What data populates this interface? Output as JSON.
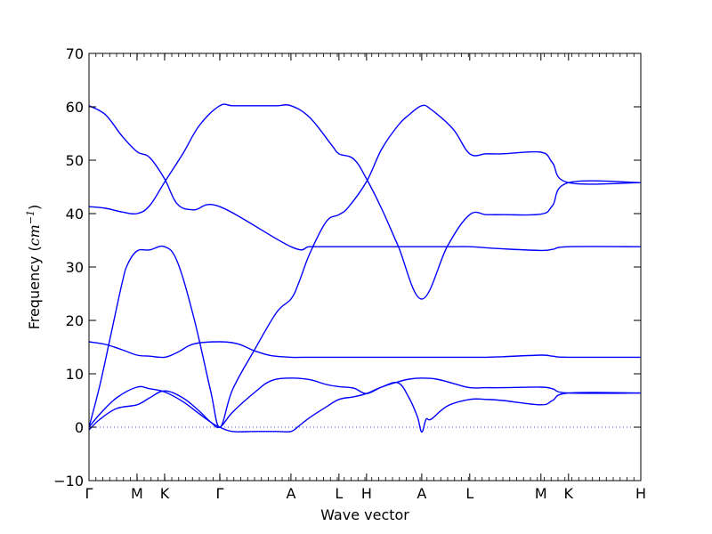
{
  "chart_data": {
    "type": "line",
    "xlabel": "Wave vector",
    "ylabel_prefix": "Frequency (",
    "ylabel_unit_main": "cm",
    "ylabel_unit_sup": "−1",
    "ylabel_suffix": ")",
    "ylim": [
      -10,
      70
    ],
    "xlim": [
      0,
      1
    ],
    "yticks": [
      -10,
      0,
      10,
      20,
      30,
      40,
      50,
      60,
      70
    ],
    "ytick_labels": [
      "−10",
      "0",
      "10",
      "20",
      "30",
      "40",
      "50",
      "60",
      "70"
    ],
    "xticks": [
      {
        "label": "Γ",
        "x": 0.0
      },
      {
        "label": "M",
        "x": 0.087
      },
      {
        "label": "K",
        "x": 0.137
      },
      {
        "label": "Γ",
        "x": 0.237
      },
      {
        "label": "A",
        "x": 0.366
      },
      {
        "label": "L",
        "x": 0.453
      },
      {
        "label": "H",
        "x": 0.503
      },
      {
        "label": "A",
        "x": 0.603
      },
      {
        "label": "L",
        "x": 0.69
      },
      {
        "label": "M",
        "x": 0.819
      },
      {
        "label": "K",
        "x": 0.869
      },
      {
        "label": "H",
        "x": 1.0
      }
    ],
    "zero_line": true,
    "line_color": "#0000ff",
    "series": [
      {
        "x": [
          0,
          0.03,
          0.06,
          0.087,
          0.11,
          0.137,
          0.16,
          0.19,
          0.237,
          0.366,
          0.4,
          0.44,
          0.453,
          0.48,
          0.503,
          0.53,
          0.56,
          0.603,
          0.65,
          0.69,
          0.72,
          0.75,
          0.819,
          0.84,
          0.869,
          1.0
        ],
        "y": [
          60.2,
          58.5,
          54.5,
          51.6,
          50.5,
          46.5,
          41.8,
          40.7,
          41.3,
          33.8,
          33.8,
          33.8,
          33.8,
          33.8,
          33.8,
          33.8,
          33.8,
          33.8,
          33.8,
          33.8,
          33.6,
          33.4,
          33.1,
          33.3,
          33.8,
          33.8
        ]
      },
      {
        "x": [
          0,
          0.03,
          0.06,
          0.087,
          0.11,
          0.137,
          0.17,
          0.2,
          0.237,
          0.26,
          0.3,
          0.34,
          0.366,
          0.4,
          0.44,
          0.453,
          0.48,
          0.503,
          0.53,
          0.56,
          0.603,
          0.65,
          0.69,
          0.72,
          0.75,
          0.819,
          0.84,
          0.869,
          1.0
        ],
        "y": [
          41.3,
          41.0,
          40.3,
          40.0,
          41.5,
          45.9,
          51.2,
          56.5,
          60.2,
          60.2,
          60.2,
          60.2,
          60.2,
          58.0,
          52.8,
          51.2,
          50.2,
          46.5,
          41.0,
          34.0,
          24.0,
          34.0,
          39.8,
          39.8,
          39.8,
          39.9,
          41.5,
          45.8,
          45.8
        ]
      },
      {
        "x": [
          0,
          0.02,
          0.04,
          0.06,
          0.07,
          0.087,
          0.11,
          0.137,
          0.16,
          0.19,
          0.22,
          0.237,
          0.26,
          0.3,
          0.34,
          0.366,
          0.38,
          0.4,
          0.43,
          0.453,
          0.47,
          0.503,
          0.53,
          0.56,
          0.58,
          0.603,
          0.62,
          0.66,
          0.69,
          0.72,
          0.75,
          0.819,
          0.84,
          0.869,
          1.0
        ],
        "y": [
          0,
          8.0,
          17.5,
          27.0,
          30.5,
          33.0,
          33.2,
          33.8,
          31.0,
          20.5,
          7.0,
          0,
          7.0,
          14.5,
          21.5,
          24.0,
          27.0,
          32.5,
          38.5,
          39.8,
          41.2,
          46.0,
          52.0,
          56.5,
          58.5,
          60.2,
          59.5,
          55.8,
          51.2,
          51.2,
          51.2,
          51.5,
          49.5,
          45.8,
          45.8
        ]
      },
      {
        "x": [
          0,
          0.03,
          0.06,
          0.087,
          0.11,
          0.137,
          0.16,
          0.19,
          0.237,
          0.27,
          0.3,
          0.33,
          0.366,
          0.4,
          0.453,
          0.503,
          0.55,
          0.603,
          0.65,
          0.69,
          0.72,
          0.75,
          0.819,
          0.84,
          0.869,
          1.0
        ],
        "y": [
          16.0,
          15.5,
          14.5,
          13.5,
          13.3,
          13.1,
          14.0,
          15.6,
          16.0,
          15.6,
          14.3,
          13.4,
          13.1,
          13.1,
          13.1,
          13.1,
          13.1,
          13.1,
          13.1,
          13.1,
          13.1,
          13.2,
          13.5,
          13.3,
          13.1,
          13.1
        ]
      },
      {
        "x": [
          0,
          0.02,
          0.05,
          0.087,
          0.11,
          0.137,
          0.17,
          0.2,
          0.22,
          0.237,
          0.26,
          0.3,
          0.33,
          0.366,
          0.4,
          0.43,
          0.453,
          0.48,
          0.503,
          0.53,
          0.56,
          0.58,
          0.603,
          0.63,
          0.66,
          0.69,
          0.72,
          0.75,
          0.819,
          0.84,
          0.869,
          1.0
        ],
        "y": [
          0,
          2.5,
          5.5,
          7.5,
          7.2,
          6.6,
          4.8,
          2.5,
          1.0,
          0,
          2.8,
          6.5,
          8.7,
          9.2,
          8.9,
          8.0,
          7.6,
          7.3,
          6.3,
          7.5,
          8.5,
          9.0,
          9.2,
          9.0,
          8.2,
          7.4,
          7.4,
          7.4,
          7.5,
          7.2,
          6.4,
          6.4
        ]
      },
      {
        "x": [
          0,
          0.02,
          0.05,
          0.087,
          0.11,
          0.137,
          0.17,
          0.2,
          0.22,
          0.237,
          0.26,
          0.3,
          0.34,
          0.366,
          0.38,
          0.4,
          0.43,
          0.453,
          0.48,
          0.503,
          0.53,
          0.56,
          0.58,
          0.595,
          0.603,
          0.611,
          0.62,
          0.65,
          0.69,
          0.72,
          0.75,
          0.819,
          0.84,
          0.869,
          1.0
        ],
        "y": [
          -0.5,
          1.5,
          3.5,
          4.2,
          5.5,
          6.8,
          5.5,
          3.0,
          1.0,
          0,
          -0.8,
          -0.8,
          -0.8,
          -0.8,
          0.2,
          1.8,
          3.8,
          5.2,
          5.7,
          6.3,
          7.5,
          8.3,
          5.5,
          2.0,
          -0.9,
          1.5,
          1.5,
          4.0,
          5.2,
          5.2,
          5.0,
          4.2,
          5.0,
          6.4,
          6.4
        ]
      }
    ]
  }
}
